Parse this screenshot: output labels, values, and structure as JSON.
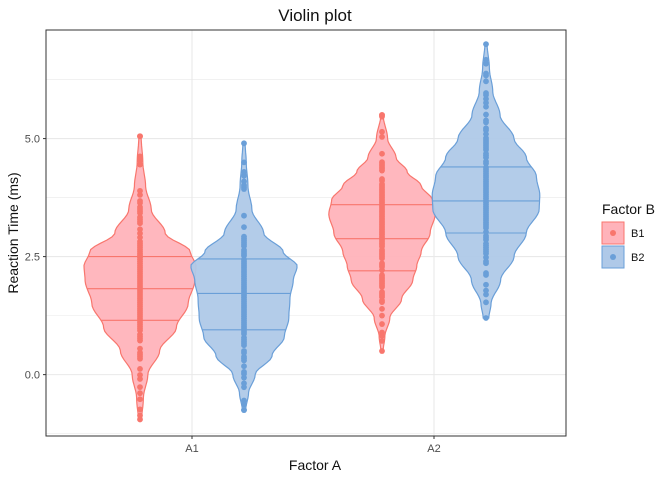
{
  "chart_data": {
    "type": "violin",
    "title": "Violin plot",
    "xlabel": "Factor A",
    "ylabel": "Reaction Time (ms)",
    "categories": [
      "A1",
      "A2"
    ],
    "yticks": [
      "0.0",
      "2.5",
      "5.0"
    ],
    "ylim": [
      -1.3,
      7.3
    ],
    "grid": true,
    "legend": {
      "title": "Factor B",
      "position": "right",
      "entries": [
        "B1",
        "B2"
      ]
    },
    "series": [
      {
        "name": "B1",
        "color": "#F8766D",
        "fill": "#FFB3BA",
        "violins": [
          {
            "category": "A1",
            "min": -0.95,
            "max": 5.05,
            "quartiles": [
              1.15,
              1.82,
              2.5
            ],
            "density": [
              [
                -0.95,
                0.03
              ],
              [
                -0.5,
                0.06
              ],
              [
                0.0,
                0.14
              ],
              [
                0.5,
                0.35
              ],
              [
                1.0,
                0.65
              ],
              [
                1.5,
                0.86
              ],
              [
                2.0,
                0.98
              ],
              [
                2.3,
                1.0
              ],
              [
                2.6,
                0.9
              ],
              [
                3.0,
                0.45
              ],
              [
                3.5,
                0.2
              ],
              [
                4.0,
                0.1
              ],
              [
                4.5,
                0.05
              ],
              [
                5.05,
                0.02
              ]
            ]
          },
          {
            "category": "A2",
            "min": 0.5,
            "max": 5.5,
            "quartiles": [
              2.2,
              2.88,
              3.6
            ],
            "density": [
              [
                0.5,
                0.02
              ],
              [
                0.8,
                0.05
              ],
              [
                1.2,
                0.14
              ],
              [
                1.6,
                0.35
              ],
              [
                2.0,
                0.55
              ],
              [
                2.3,
                0.62
              ],
              [
                2.6,
                0.7
              ],
              [
                3.0,
                0.86
              ],
              [
                3.4,
                0.95
              ],
              [
                3.7,
                0.9
              ],
              [
                4.0,
                0.7
              ],
              [
                4.3,
                0.45
              ],
              [
                4.6,
                0.25
              ],
              [
                5.0,
                0.1
              ],
              [
                5.5,
                0.02
              ]
            ]
          }
        ]
      },
      {
        "name": "B2",
        "color": "#6A9FD8",
        "fill": "#AFC9E8",
        "violins": [
          {
            "category": "A1",
            "min": -0.75,
            "max": 4.9,
            "quartiles": [
              0.95,
              1.72,
              2.45
            ],
            "density": [
              [
                -0.75,
                0.03
              ],
              [
                -0.4,
                0.08
              ],
              [
                0.0,
                0.2
              ],
              [
                0.4,
                0.5
              ],
              [
                0.8,
                0.72
              ],
              [
                1.2,
                0.8
              ],
              [
                1.6,
                0.82
              ],
              [
                2.0,
                0.88
              ],
              [
                2.3,
                0.95
              ],
              [
                2.6,
                0.7
              ],
              [
                3.0,
                0.35
              ],
              [
                3.5,
                0.14
              ],
              [
                4.0,
                0.07
              ],
              [
                4.5,
                0.04
              ],
              [
                4.9,
                0.02
              ]
            ]
          },
          {
            "category": "A2",
            "min": 1.2,
            "max": 7.0,
            "quartiles": [
              3.0,
              3.68,
              4.4
            ],
            "density": [
              [
                1.2,
                0.05
              ],
              [
                1.5,
                0.09
              ],
              [
                2.0,
                0.26
              ],
              [
                2.5,
                0.5
              ],
              [
                3.0,
                0.72
              ],
              [
                3.5,
                0.95
              ],
              [
                3.8,
                0.96
              ],
              [
                4.2,
                0.9
              ],
              [
                4.6,
                0.72
              ],
              [
                5.0,
                0.5
              ],
              [
                5.5,
                0.25
              ],
              [
                6.0,
                0.12
              ],
              [
                6.5,
                0.06
              ],
              [
                7.0,
                0.02
              ]
            ]
          }
        ]
      }
    ]
  }
}
